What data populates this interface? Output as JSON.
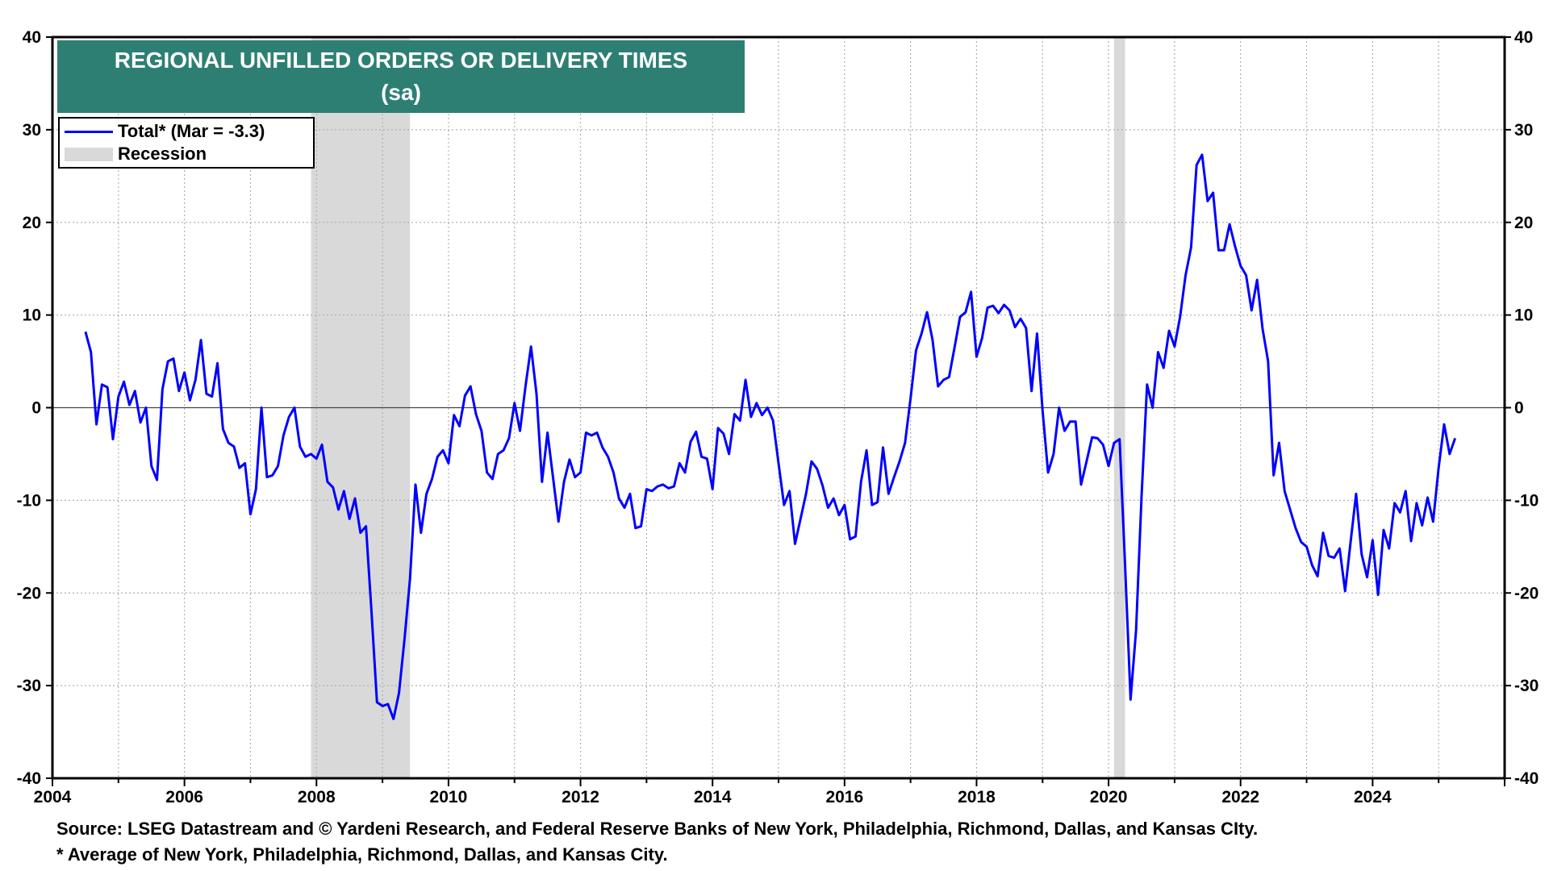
{
  "chart_data": {
    "type": "line",
    "title": "REGIONAL UNFILLED ORDERS OR DELIVERY TIMES",
    "subtitle": "(sa)",
    "xlabel": "",
    "ylabel": "",
    "xlim": [
      2004,
      2026
    ],
    "ylim": [
      -40,
      40
    ],
    "x_ticks": [
      "2004",
      "2006",
      "2008",
      "2010",
      "2012",
      "2014",
      "2016",
      "2018",
      "2020",
      "2022",
      "2024"
    ],
    "y_ticks": [
      "40",
      "30",
      "20",
      "10",
      "0",
      "-10",
      "-20",
      "-30",
      "-40"
    ],
    "grid": true,
    "legend_position": "top-left",
    "series_color": "#0000ff",
    "recession_color": "#d9d9d9",
    "series": [
      {
        "name": "Total*  (Mar = -3.3)",
        "start": "2004-07",
        "step": "month",
        "values": [
          8.2,
          6.0,
          -1.8,
          2.5,
          2.2,
          -3.4,
          1.2,
          2.8,
          0.3,
          1.8,
          -1.6,
          0.0,
          -6.3,
          -7.8,
          2.0,
          5.0,
          5.3,
          1.8,
          3.8,
          0.8,
          3.0,
          7.3,
          1.5,
          1.2,
          4.8,
          -2.3,
          -3.8,
          -4.2,
          -6.5,
          -6.0,
          -11.5,
          -8.8,
          0.0,
          -7.5,
          -7.3,
          -6.3,
          -3.0,
          -1.0,
          0.0,
          -4.2,
          -5.3,
          -5.0,
          -5.5,
          -4.0,
          -8.0,
          -8.6,
          -11.0,
          -9.0,
          -12.0,
          -9.8,
          -13.5,
          -12.8,
          -22.0,
          -31.8,
          -32.2,
          -32.0,
          -33.6,
          -30.8,
          -25.0,
          -18.5,
          -8.3,
          -13.5,
          -9.3,
          -7.7,
          -5.3,
          -4.6,
          -6.0,
          -0.8,
          -2.0,
          1.3,
          2.3,
          -0.7,
          -2.5,
          -7.0,
          -7.7,
          -5.0,
          -4.6,
          -3.3,
          0.5,
          -2.5,
          2.3,
          6.6,
          1.5,
          -8.0,
          -2.7,
          -7.5,
          -12.3,
          -8.0,
          -5.6,
          -7.5,
          -7.0,
          -2.7,
          -3.0,
          -2.7,
          -4.3,
          -5.3,
          -7.0,
          -9.8,
          -10.8,
          -9.3,
          -13.0,
          -12.8,
          -8.8,
          -9.0,
          -8.5,
          -8.3,
          -8.7,
          -8.5,
          -6.0,
          -7.0,
          -3.7,
          -2.6,
          -5.3,
          -5.5,
          -8.8,
          -2.2,
          -2.8,
          -5.0,
          -0.7,
          -1.4,
          3.0,
          -1.0,
          0.5,
          -0.8,
          0.0,
          -1.4,
          -6.0,
          -10.5,
          -9.0,
          -14.7,
          -12.0,
          -9.3,
          -5.8,
          -6.6,
          -8.4,
          -10.8,
          -9.8,
          -11.6,
          -10.5,
          -14.2,
          -13.9,
          -8.0,
          -4.6,
          -10.5,
          -10.2,
          -4.3,
          -9.3,
          -7.5,
          -5.8,
          -3.8,
          1.0,
          6.2,
          8.0,
          10.3,
          7.3,
          2.3,
          3.0,
          3.3,
          6.5,
          9.8,
          10.3,
          12.5,
          5.5,
          7.5,
          10.8,
          11.0,
          10.2,
          11.1,
          10.5,
          8.7,
          9.6,
          8.6,
          1.8,
          8.0,
          -0.3,
          -7.0,
          -5.0,
          0.0,
          -2.5,
          -1.5,
          -1.5,
          -8.3,
          -5.8,
          -3.2,
          -3.3,
          -4.0,
          -6.3,
          -3.8,
          -3.4,
          -17.0,
          -31.5,
          -24.0,
          -9.5,
          2.5,
          0.0,
          6.0,
          4.3,
          8.3,
          6.6,
          9.8,
          14.3,
          17.3,
          26.2,
          27.3,
          22.3,
          23.2,
          17.0,
          17.0,
          19.8,
          17.4,
          15.3,
          14.3,
          10.5,
          13.8,
          8.5,
          5.0,
          -7.3,
          -3.8,
          -9.0,
          -11.0,
          -13.0,
          -14.5,
          -15.0,
          -17.0,
          -18.2,
          -13.5,
          -16.0,
          -16.2,
          -15.2,
          -19.8,
          -14.5,
          -9.3,
          -15.8,
          -18.3,
          -14.3,
          -20.2,
          -13.2,
          -15.2,
          -10.3,
          -11.3,
          -9.0,
          -14.4,
          -10.3,
          -12.7,
          -9.7,
          -12.3,
          -6.5,
          -1.8,
          -5.0,
          -3.3
        ]
      }
    ],
    "recessions": [
      {
        "name": "Recession",
        "start": 2007.917,
        "end": 2009.417
      },
      {
        "start": 2020.083,
        "end": 2020.25
      }
    ]
  },
  "legend": {
    "line_label": "Total*  (Mar = -3.3)",
    "band_label": "Recession"
  },
  "footnotes": {
    "source": "Source: LSEG Datastream and © Yardeni Research, and Federal Reserve Banks of New York, Philadelphia, Richmond, Dallas, and Kansas CIty.",
    "note": "* Average of New York, Philadelphia, Richmond, Dallas, and Kansas City."
  }
}
